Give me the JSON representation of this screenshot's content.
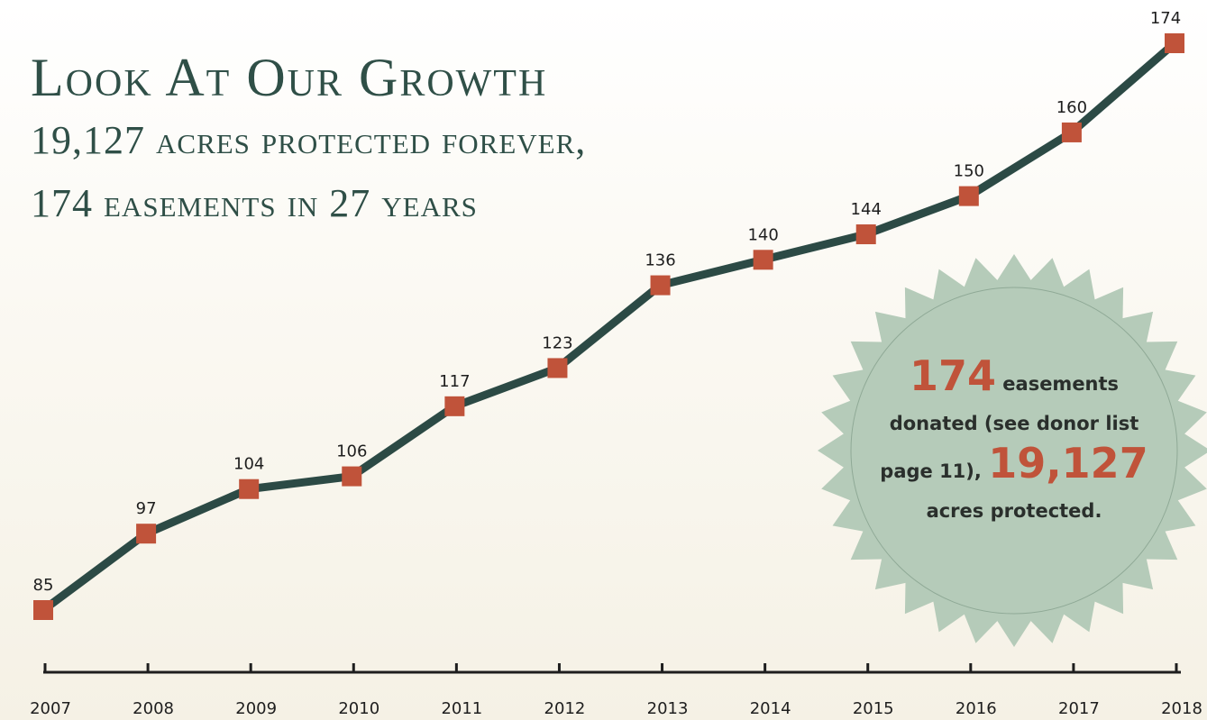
{
  "chart_data": {
    "type": "line",
    "title": "Look At Our Growth",
    "subtitle": [
      "19,127 acres protected forever,",
      "174 easements in 27 years"
    ],
    "categories": [
      "2007",
      "2008",
      "2009",
      "2010",
      "2011",
      "2012",
      "2013",
      "2014",
      "2015",
      "2016",
      "2017",
      "2018"
    ],
    "values": [
      85,
      97,
      104,
      106,
      117,
      123,
      136,
      140,
      144,
      150,
      160,
      174
    ],
    "line_color": "#2c4a45",
    "marker_color": "#c0533a",
    "annotation": [
      "174",
      "easements donated (see donor list page 11),",
      "19,127",
      "acres protected."
    ]
  }
}
